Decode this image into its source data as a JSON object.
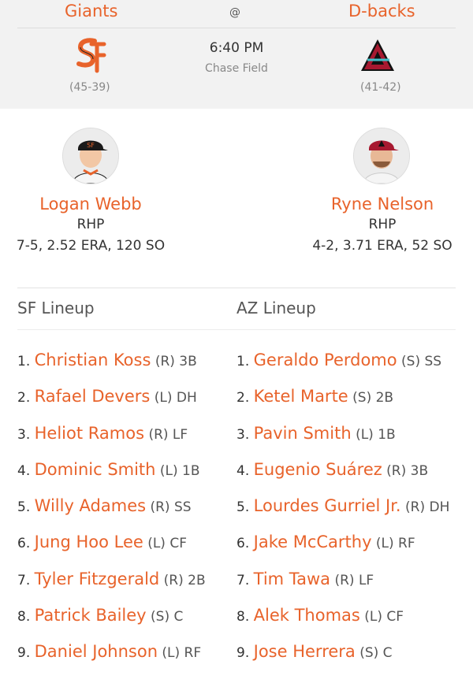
{
  "header": {
    "away_team": "Giants",
    "home_team": "D-backs",
    "at": "@",
    "time": "6:40 PM",
    "venue": "Chase Field",
    "away_record": "(45-39)",
    "home_record": "(41-42)"
  },
  "pitchers": {
    "away": {
      "name": "Logan Webb",
      "hand": "RHP",
      "stats": "7-5, 2.52 ERA, 120 SO"
    },
    "home": {
      "name": "Ryne Nelson",
      "hand": "RHP",
      "stats": "4-2, 3.71 ERA, 52 SO"
    }
  },
  "lineups": {
    "away_title": "SF Lineup",
    "home_title": "AZ Lineup",
    "away": [
      {
        "num": "1.",
        "name": "Christian Koss",
        "meta": "(R) 3B"
      },
      {
        "num": "2.",
        "name": "Rafael Devers",
        "meta": "(L) DH"
      },
      {
        "num": "3.",
        "name": "Heliot Ramos",
        "meta": "(R) LF"
      },
      {
        "num": "4.",
        "name": "Dominic Smith",
        "meta": "(L) 1B"
      },
      {
        "num": "5.",
        "name": "Willy Adames",
        "meta": "(R) SS"
      },
      {
        "num": "6.",
        "name": "Jung Hoo Lee",
        "meta": "(L) CF"
      },
      {
        "num": "7.",
        "name": "Tyler Fitzgerald",
        "meta": "(R) 2B"
      },
      {
        "num": "8.",
        "name": "Patrick Bailey",
        "meta": "(S) C"
      },
      {
        "num": "9.",
        "name": "Daniel Johnson",
        "meta": "(L) RF"
      }
    ],
    "home": [
      {
        "num": "1.",
        "name": "Geraldo Perdomo",
        "meta": "(S) SS"
      },
      {
        "num": "2.",
        "name": "Ketel Marte",
        "meta": "(S) 2B"
      },
      {
        "num": "3.",
        "name": "Pavin Smith",
        "meta": "(L) 1B"
      },
      {
        "num": "4.",
        "name": "Eugenio Suárez",
        "meta": "(R) 3B"
      },
      {
        "num": "5.",
        "name": "Lourdes Gurriel Jr.",
        "meta": "(R) DH"
      },
      {
        "num": "6.",
        "name": "Jake McCarthy",
        "meta": "(L) RF"
      },
      {
        "num": "7.",
        "name": "Tim Tawa",
        "meta": "(R) LF"
      },
      {
        "num": "8.",
        "name": "Alek Thomas",
        "meta": "(L) CF"
      },
      {
        "num": "9.",
        "name": "Jose Herrera",
        "meta": "(S) C"
      }
    ]
  },
  "icons": {
    "away_logo": "sf-giants-logo-icon",
    "home_logo": "dbacks-a-logo-icon",
    "away_avatar": "pitcher-headshot",
    "home_avatar": "pitcher-headshot"
  },
  "colors": {
    "accent": "#e8632b",
    "header_bg": "#f2f2f2",
    "dbacks_red": "#a71930",
    "dbacks_teal": "#3fc1c9"
  }
}
